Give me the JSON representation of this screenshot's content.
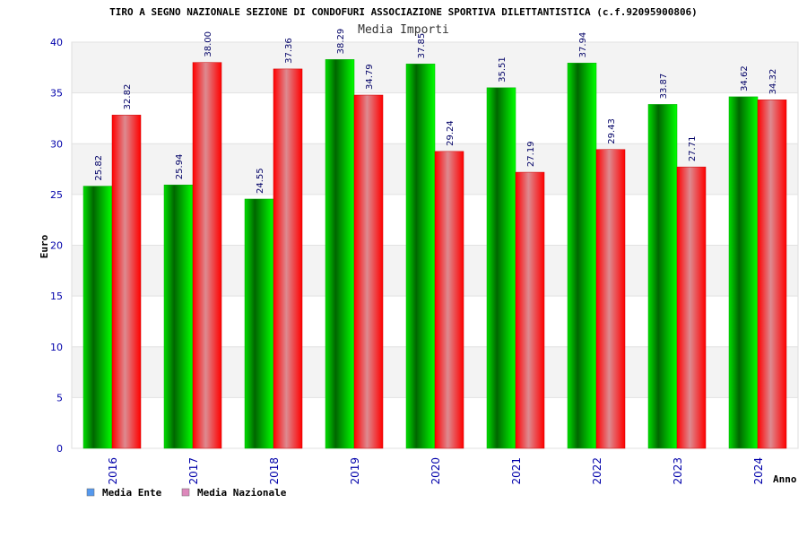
{
  "chart_data": {
    "type": "bar",
    "title": "TIRO A SEGNO NAZIONALE SEZIONE DI CONDOFURI ASSOCIAZIONE SPORTIVA DILETTANTISTICA (c.f.92095900806)",
    "subtitle": "Media Importi",
    "xlabel": "Anno",
    "ylabel": "Euro",
    "ylim": [
      0,
      40
    ],
    "yticks": [
      0,
      5,
      10,
      15,
      20,
      25,
      30,
      35,
      40
    ],
    "grid": true,
    "legend_position": "bottom-left",
    "categories": [
      "2016",
      "2017",
      "2018",
      "2019",
      "2020",
      "2021",
      "2022",
      "2023",
      "2024"
    ],
    "series": [
      {
        "name": "Media Ente",
        "color": "#00cc00",
        "legend_color": "#5599ee",
        "values": [
          25.82,
          25.94,
          24.55,
          38.29,
          37.85,
          35.51,
          37.94,
          33.87,
          34.62
        ],
        "labels": [
          "25.82",
          "25.94",
          "24.55",
          "38.29",
          "37.85",
          "35.51",
          "37.94",
          "33.87",
          "34.62"
        ]
      },
      {
        "name": "Media Nazionale",
        "color": "#ff0000",
        "legend_color": "#dd88bb",
        "values": [
          32.82,
          38.0,
          37.36,
          34.79,
          29.24,
          27.19,
          29.43,
          27.71,
          34.32
        ],
        "labels": [
          "32.82",
          "38.00",
          "37.36",
          "34.79",
          "29.24",
          "27.19",
          "29.43",
          "27.71",
          "34.32"
        ]
      }
    ]
  }
}
